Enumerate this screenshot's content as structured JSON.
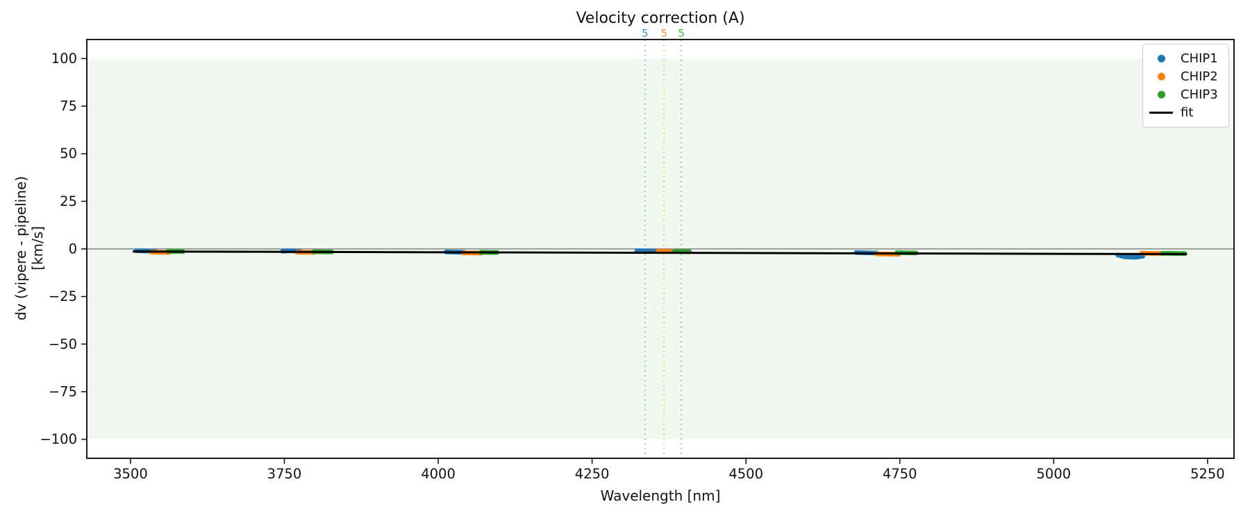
{
  "figure": {
    "background": "#ffffff",
    "text_color": "#111111"
  },
  "chart_data": {
    "type": "scatter",
    "title": "Velocity correction (A)",
    "xlabel": "Wavelength [nm]",
    "ylabel": "dv (vipere - pipeline) [km/s]",
    "xlim": [
      3429,
      5293
    ],
    "ylim": [
      -110,
      110
    ],
    "xticks": [
      3500,
      3750,
      4000,
      4250,
      4500,
      4750,
      5000,
      5250
    ],
    "xtick_labels": [
      "3500",
      "3750",
      "4000",
      "4250",
      "4500",
      "4750",
      "5000",
      "5250"
    ],
    "yticks": [
      100,
      75,
      50,
      25,
      0,
      -25,
      -50,
      -75,
      -100
    ],
    "ytick_labels": [
      "100",
      "75",
      "50",
      "25",
      "0",
      "−25",
      "−50",
      "−75",
      "−100"
    ],
    "grid": false,
    "legend_position": "upper right",
    "shaded_band": {
      "y0": -100,
      "y1": 100,
      "color": "#2ca02c",
      "opacity": 0.07
    },
    "zero_line": {
      "y": 0,
      "color": "#808080",
      "width": 1.5
    },
    "order_markers": [
      {
        "chip": "CHIP1",
        "x": 4336,
        "label": "5",
        "color": "#1f77b4"
      },
      {
        "chip": "CHIP2",
        "x": 4367,
        "label": "5",
        "color": "#ff7f0e"
      },
      {
        "chip": "CHIP3",
        "x": 4395,
        "label": "5",
        "color": "#2ca02c"
      }
    ],
    "series": [
      {
        "name": "CHIP1",
        "color": "#1f77b4",
        "segments": [
          [
            [
              3509,
              -1.0
            ],
            [
              3541,
              -1.2
            ]
          ],
          [
            [
              3747,
              -1.2
            ],
            [
              3760,
              -0.95
            ],
            [
              3778,
              -1.45
            ]
          ],
          [
            [
              4013,
              -1.6
            ],
            [
              4043,
              -1.8
            ]
          ],
          [
            [
              4323,
              -1.0
            ],
            [
              4352,
              -1.15
            ]
          ],
          [
            [
              4679,
              -1.9
            ],
            [
              4714,
              -2.2
            ]
          ],
          [
            [
              5104,
              -3.2
            ],
            [
              5116,
              -4.2
            ],
            [
              5132,
              -4.4
            ],
            [
              5146,
              -3.8
            ]
          ]
        ]
      },
      {
        "name": "CHIP2",
        "color": "#ff7f0e",
        "segments": [
          [
            [
              3534,
              -1.7
            ],
            [
              3563,
              -1.85
            ]
          ],
          [
            [
              3771,
              -1.75
            ],
            [
              3797,
              -1.85
            ],
            [
              3803,
              -1.5
            ]
          ],
          [
            [
              4041,
              -2.1
            ],
            [
              4070,
              -2.2
            ]
          ],
          [
            [
              4357,
              -1.25
            ],
            [
              4382,
              -1.35
            ]
          ],
          [
            [
              4712,
              -2.6
            ],
            [
              4748,
              -2.8
            ]
          ],
          [
            [
              5143,
              -2.3
            ],
            [
              5181,
              -2.4
            ]
          ]
        ]
      },
      {
        "name": "CHIP3",
        "color": "#2ca02c",
        "segments": [
          [
            [
              3561,
              -1.25
            ],
            [
              3586,
              -1.4
            ]
          ],
          [
            [
              3798,
              -1.5
            ],
            [
              3829,
              -1.6
            ]
          ],
          [
            [
              4069,
              -1.8
            ],
            [
              4096,
              -1.9
            ]
          ],
          [
            [
              4384,
              -1.35
            ],
            [
              4409,
              -1.45
            ]
          ],
          [
            [
              4745,
              -2.0
            ],
            [
              4778,
              -2.15
            ]
          ],
          [
            [
              5177,
              -2.3
            ],
            [
              5213,
              -2.45
            ]
          ]
        ]
      }
    ],
    "fit": {
      "name": "fit",
      "color": "#000000",
      "width": 3,
      "points": [
        [
          3505,
          -1.35
        ],
        [
          5215,
          -2.75
        ]
      ]
    }
  },
  "legend": {
    "entries": [
      {
        "label": "CHIP1",
        "type": "dot",
        "color": "#1f77b4"
      },
      {
        "label": "CHIP2",
        "type": "dot",
        "color": "#ff7f0e"
      },
      {
        "label": "CHIP3",
        "type": "dot",
        "color": "#2ca02c"
      },
      {
        "label": "fit",
        "type": "line",
        "color": "#000000"
      }
    ]
  }
}
